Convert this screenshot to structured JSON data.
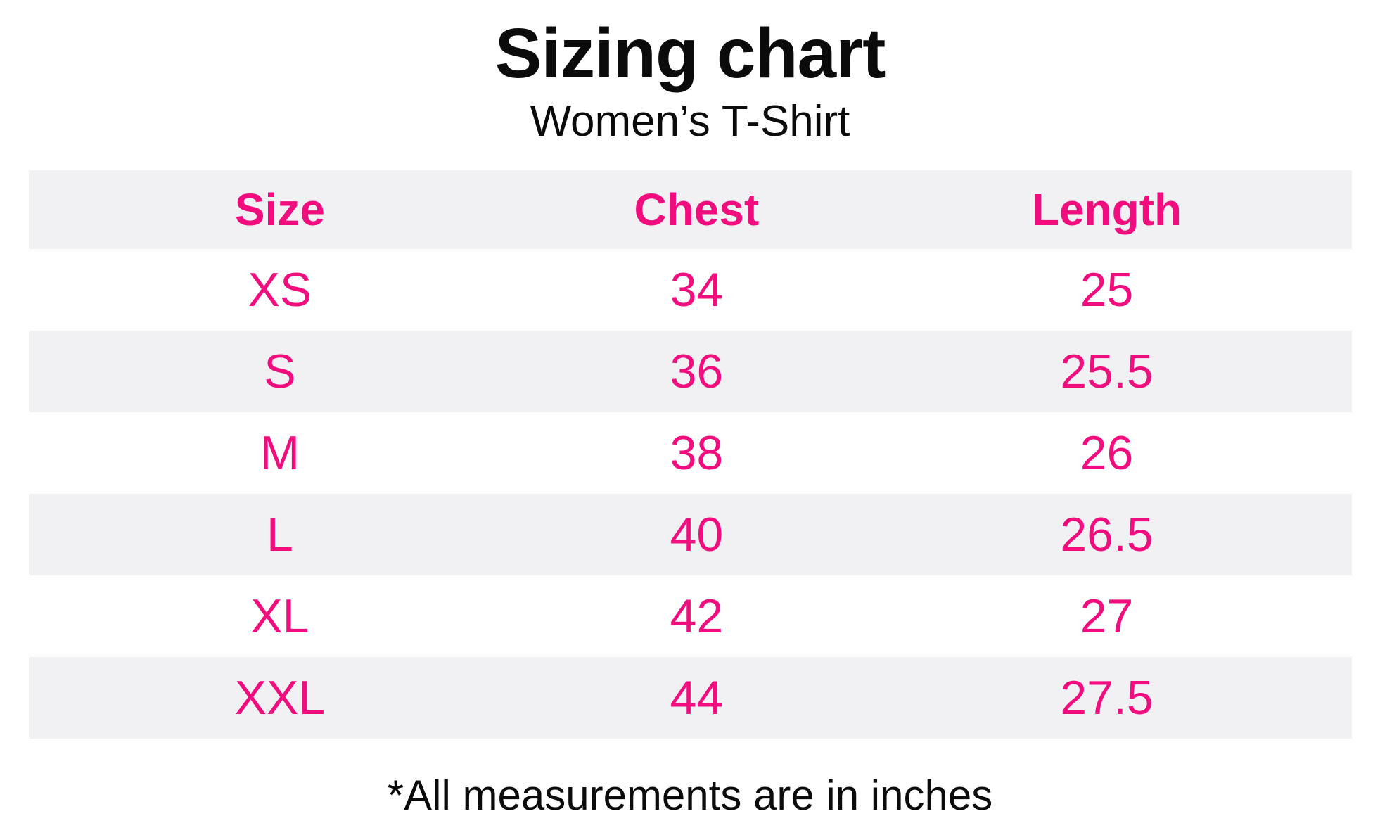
{
  "title": "Sizing chart",
  "subtitle": "Women’s T-Shirt",
  "footnote": "*All measurements are in inches",
  "colors": {
    "accent_pink": "#F10D7E",
    "row_alt_bg": "#F1F1F4",
    "text_black": "#0B0B0B",
    "page_bg": "#FFFFFF"
  },
  "table": {
    "headers": [
      "Size",
      "Chest",
      "Length"
    ],
    "rows": [
      [
        "XS",
        "34",
        "25"
      ],
      [
        "S",
        "36",
        "25.5"
      ],
      [
        "M",
        "38",
        "26"
      ],
      [
        "L",
        "40",
        "26.5"
      ],
      [
        "XL",
        "42",
        "27"
      ],
      [
        "XXL",
        "44",
        "27.5"
      ]
    ]
  },
  "chart_data": {
    "type": "table",
    "title": "Sizing chart",
    "subtitle": "Women’s T-Shirt",
    "columns": [
      "Size",
      "Chest",
      "Length"
    ],
    "rows": [
      {
        "size": "XS",
        "chest": 34,
        "length": 25
      },
      {
        "size": "S",
        "chest": 36,
        "length": 25.5
      },
      {
        "size": "M",
        "chest": 38,
        "length": 26
      },
      {
        "size": "L",
        "chest": 40,
        "length": 26.5
      },
      {
        "size": "XL",
        "chest": 42,
        "length": 27
      },
      {
        "size": "XXL",
        "chest": 44,
        "length": 27.5
      }
    ],
    "units": "inches",
    "annotations": [
      "*All measurements are in inches"
    ],
    "layout_hints": {
      "header_row_bg": "#F1F1F4",
      "alternating_rows": true,
      "text_color": "#F10D7E",
      "grid": false
    }
  }
}
